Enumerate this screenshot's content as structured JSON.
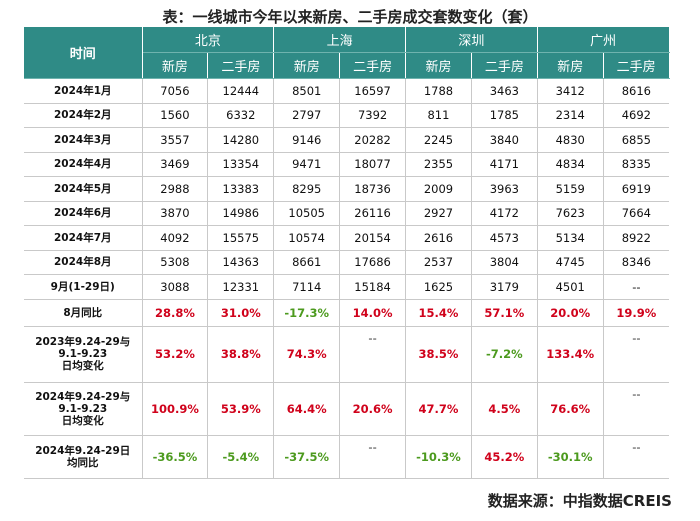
{
  "title": "表：一线城市今年以来新房、二手房成交套数变化（套）",
  "header": {
    "time_label": "时间",
    "cities": [
      "北京",
      "上海",
      "深圳",
      "广州"
    ],
    "sub_new": "新房",
    "sub_second": "二手房"
  },
  "rows": [
    {
      "label": "2024年1月",
      "values": [
        "7056",
        "12444",
        "8501",
        "16597",
        "1788",
        "3463",
        "3412",
        "8616"
      ]
    },
    {
      "label": "2024年2月",
      "values": [
        "1560",
        "6332",
        "2797",
        "7392",
        "811",
        "1785",
        "2314",
        "4692"
      ]
    },
    {
      "label": "2024年3月",
      "values": [
        "3557",
        "14280",
        "9146",
        "20282",
        "2245",
        "3840",
        "4830",
        "6855"
      ]
    },
    {
      "label": "2024年4月",
      "values": [
        "3469",
        "13354",
        "9471",
        "18077",
        "2355",
        "4171",
        "4834",
        "8335"
      ]
    },
    {
      "label": "2024年5月",
      "values": [
        "2988",
        "13383",
        "8295",
        "18736",
        "2009",
        "3963",
        "5159",
        "6919"
      ]
    },
    {
      "label": "2024年6月",
      "values": [
        "3870",
        "14986",
        "10505",
        "26116",
        "2927",
        "4172",
        "7623",
        "7664"
      ]
    },
    {
      "label": "2024年7月",
      "values": [
        "4092",
        "15575",
        "10574",
        "20154",
        "2616",
        "4573",
        "5134",
        "8922"
      ]
    },
    {
      "label": "2024年8月",
      "values": [
        "5308",
        "14363",
        "8661",
        "17686",
        "2537",
        "3804",
        "4745",
        "8346"
      ]
    },
    {
      "label": "9月(1-29日)",
      "values": [
        "3088",
        "12331",
        "7114",
        "15184",
        "1625",
        "3179",
        "4501",
        "--"
      ]
    }
  ],
  "change_rows": [
    {
      "label_lines": [
        "8月同比"
      ],
      "values": [
        "28.8%",
        "31.0%",
        "-17.3%",
        "14.0%",
        "15.4%",
        "57.1%",
        "20.0%",
        "19.9%"
      ],
      "colors": [
        "red",
        "red",
        "green",
        "red",
        "red",
        "red",
        "red",
        "red"
      ]
    },
    {
      "label_lines": [
        "2023年9.24-29与",
        "9.1-9.23",
        "日均变化"
      ],
      "values": [
        "53.2%",
        "38.8%",
        "74.3%",
        "--",
        "38.5%",
        "-7.2%",
        "133.4%",
        "--"
      ],
      "colors": [
        "red",
        "red",
        "red",
        "dash",
        "red",
        "green",
        "red",
        "dash"
      ]
    },
    {
      "label_lines": [
        "2024年9.24-29与",
        "9.1-9.23",
        "日均变化"
      ],
      "values": [
        "100.9%",
        "53.9%",
        "64.4%",
        "20.6%",
        "47.7%",
        "4.5%",
        "76.6%",
        "--"
      ],
      "colors": [
        "red",
        "red",
        "red",
        "red",
        "red",
        "red",
        "red",
        "dash"
      ]
    },
    {
      "label_lines": [
        "2024年9.24-29日",
        "均同比"
      ],
      "values": [
        "-36.5%",
        "-5.4%",
        "-37.5%",
        "--",
        "-10.3%",
        "45.2%",
        "-30.1%",
        "--"
      ],
      "colors": [
        "green",
        "green",
        "green",
        "dash",
        "green",
        "red",
        "green",
        "dash"
      ]
    }
  ],
  "source": "数据来源：中指数据CREIS"
}
